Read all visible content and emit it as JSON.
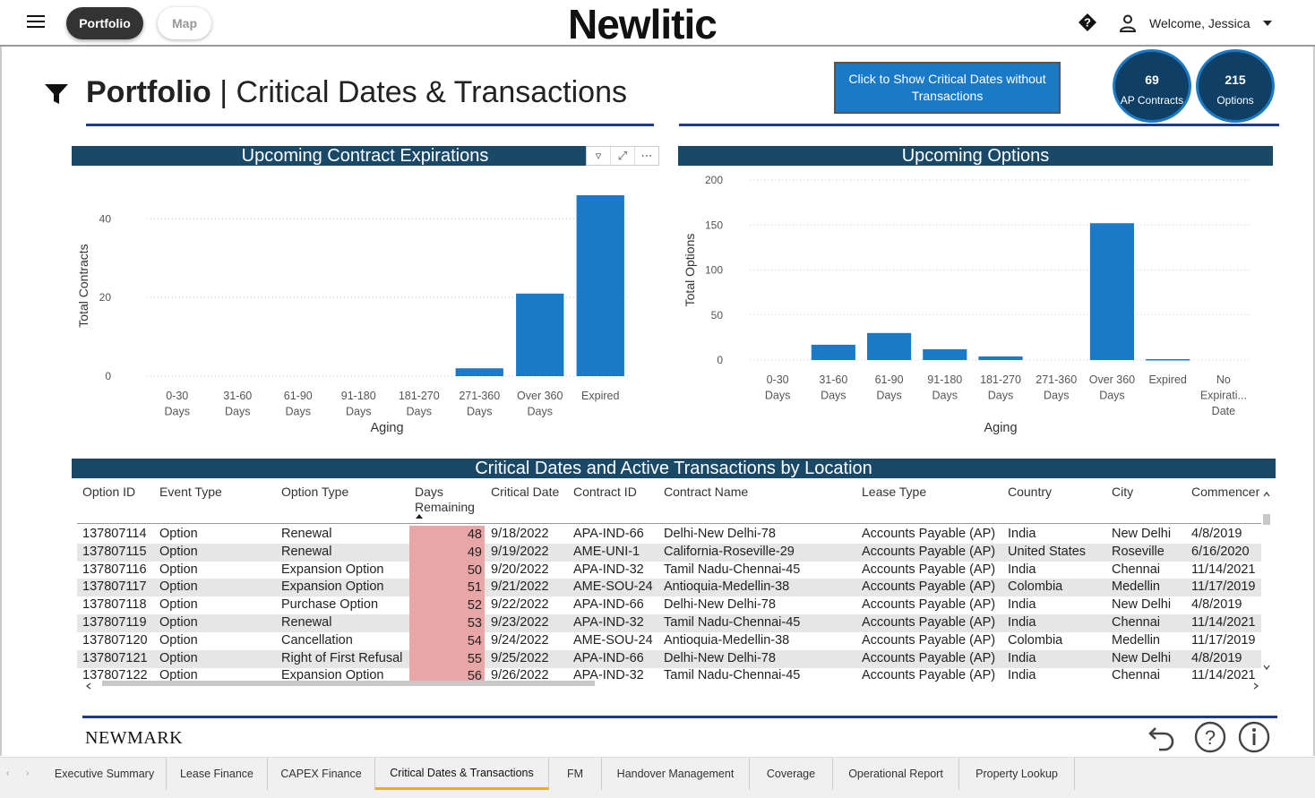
{
  "topbar": {
    "portfolio_label": "Portfolio",
    "map_label": "Map",
    "brand": "Newlitic",
    "welcome": "Welcome, Jessica"
  },
  "header": {
    "title_bold": "Portfolio",
    "title_rest": "Critical Dates & Transactions",
    "toggle_button": "Click to Show Critical Dates without Transactions",
    "kpis": [
      {
        "value": "69",
        "label": "AP Contracts"
      },
      {
        "value": "215",
        "label": "Options"
      }
    ]
  },
  "colors": {
    "panel_header": "#1a4867",
    "bar": "#1a7ac7",
    "days_highlight": "#e8a6a6",
    "accent_line": "#1e3a8a"
  },
  "chart_data": [
    {
      "type": "bar",
      "title": "Upcoming Contract Expirations",
      "xlabel": "Aging",
      "ylabel": "Total Contracts",
      "categories": [
        "0-30 Days",
        "31-60 Days",
        "61-90 Days",
        "91-180 Days",
        "181-270 Days",
        "271-360 Days",
        "Over 360 Days",
        "Expired"
      ],
      "values": [
        0,
        0,
        0,
        0,
        0,
        2,
        21,
        46
      ],
      "ylim": [
        0,
        46
      ],
      "yticks": [
        0,
        20,
        40
      ],
      "grid": true
    },
    {
      "type": "bar",
      "title": "Upcoming Options",
      "xlabel": "Aging",
      "ylabel": "Total Options",
      "categories": [
        "0-30 Days",
        "31-60 Days",
        "61-90 Days",
        "91-180 Days",
        "181-270 Days",
        "271-360 Days",
        "Over 360 Days",
        "Expired",
        "No Expirati... Date"
      ],
      "values": [
        0,
        17,
        30,
        12,
        4,
        0,
        152,
        1,
        0
      ],
      "ylim": [
        0,
        200
      ],
      "yticks": [
        0,
        50,
        100,
        150,
        200
      ],
      "grid": true
    }
  ],
  "table": {
    "title": "Critical Dates and Active Transactions by Location",
    "columns": [
      "Option ID",
      "Event Type",
      "Option Type",
      "Days Remaining",
      "Critical Date",
      "Contract ID",
      "Contract Name",
      "Lease Type",
      "Country",
      "City",
      "Commencer"
    ],
    "rows": [
      [
        "137807114",
        "Option",
        "Renewal",
        "48",
        "9/18/2022",
        "APA-IND-66",
        "Delhi-New Delhi-78",
        "Accounts Payable (AP)",
        "India",
        "New Delhi",
        "4/8/2019"
      ],
      [
        "137807115",
        "Option",
        "Renewal",
        "49",
        "9/19/2022",
        "AME-UNI-1",
        "California-Roseville-29",
        "Accounts Payable (AP)",
        "United States",
        "Roseville",
        "6/16/2020"
      ],
      [
        "137807116",
        "Option",
        "Expansion Option",
        "50",
        "9/20/2022",
        "APA-IND-32",
        "Tamil Nadu-Chennai-45",
        "Accounts Payable (AP)",
        "India",
        "Chennai",
        "11/14/2021"
      ],
      [
        "137807117",
        "Option",
        "Expansion Option",
        "51",
        "9/21/2022",
        "AME-SOU-24",
        "Antioquia-Medellin-38",
        "Accounts Payable (AP)",
        "Colombia",
        "Medellin",
        "11/17/2019"
      ],
      [
        "137807118",
        "Option",
        "Purchase Option",
        "52",
        "9/22/2022",
        "APA-IND-66",
        "Delhi-New Delhi-78",
        "Accounts Payable (AP)",
        "India",
        "New Delhi",
        "4/8/2019"
      ],
      [
        "137807119",
        "Option",
        "Renewal",
        "53",
        "9/23/2022",
        "APA-IND-32",
        "Tamil Nadu-Chennai-45",
        "Accounts Payable (AP)",
        "India",
        "Chennai",
        "11/14/2021"
      ],
      [
        "137807120",
        "Option",
        "Cancellation",
        "54",
        "9/24/2022",
        "AME-SOU-24",
        "Antioquia-Medellin-38",
        "Accounts Payable (AP)",
        "Colombia",
        "Medellin",
        "11/17/2019"
      ],
      [
        "137807121",
        "Option",
        "Right of First Refusal",
        "55",
        "9/25/2022",
        "APA-IND-66",
        "Delhi-New Delhi-78",
        "Accounts Payable (AP)",
        "India",
        "New Delhi",
        "4/8/2019"
      ],
      [
        "137807122",
        "Option",
        "Expansion Option",
        "56",
        "9/26/2022",
        "APA-IND-32",
        "Tamil Nadu-Chennai-45",
        "Accounts Payable (AP)",
        "India",
        "Chennai",
        "11/14/2021"
      ]
    ]
  },
  "footer": {
    "brand": "NEWMARK"
  },
  "tabs": [
    {
      "label": "Executive Summary",
      "active": false
    },
    {
      "label": "Lease Finance",
      "active": false
    },
    {
      "label": "CAPEX Finance",
      "active": false
    },
    {
      "label": "Critical Dates & Transactions",
      "active": true
    },
    {
      "label": "FM",
      "active": false
    },
    {
      "label": "Handover Management",
      "active": false
    },
    {
      "label": "Coverage",
      "active": false
    },
    {
      "label": "Operational Report",
      "active": false
    },
    {
      "label": "Property Lookup",
      "active": false
    }
  ]
}
